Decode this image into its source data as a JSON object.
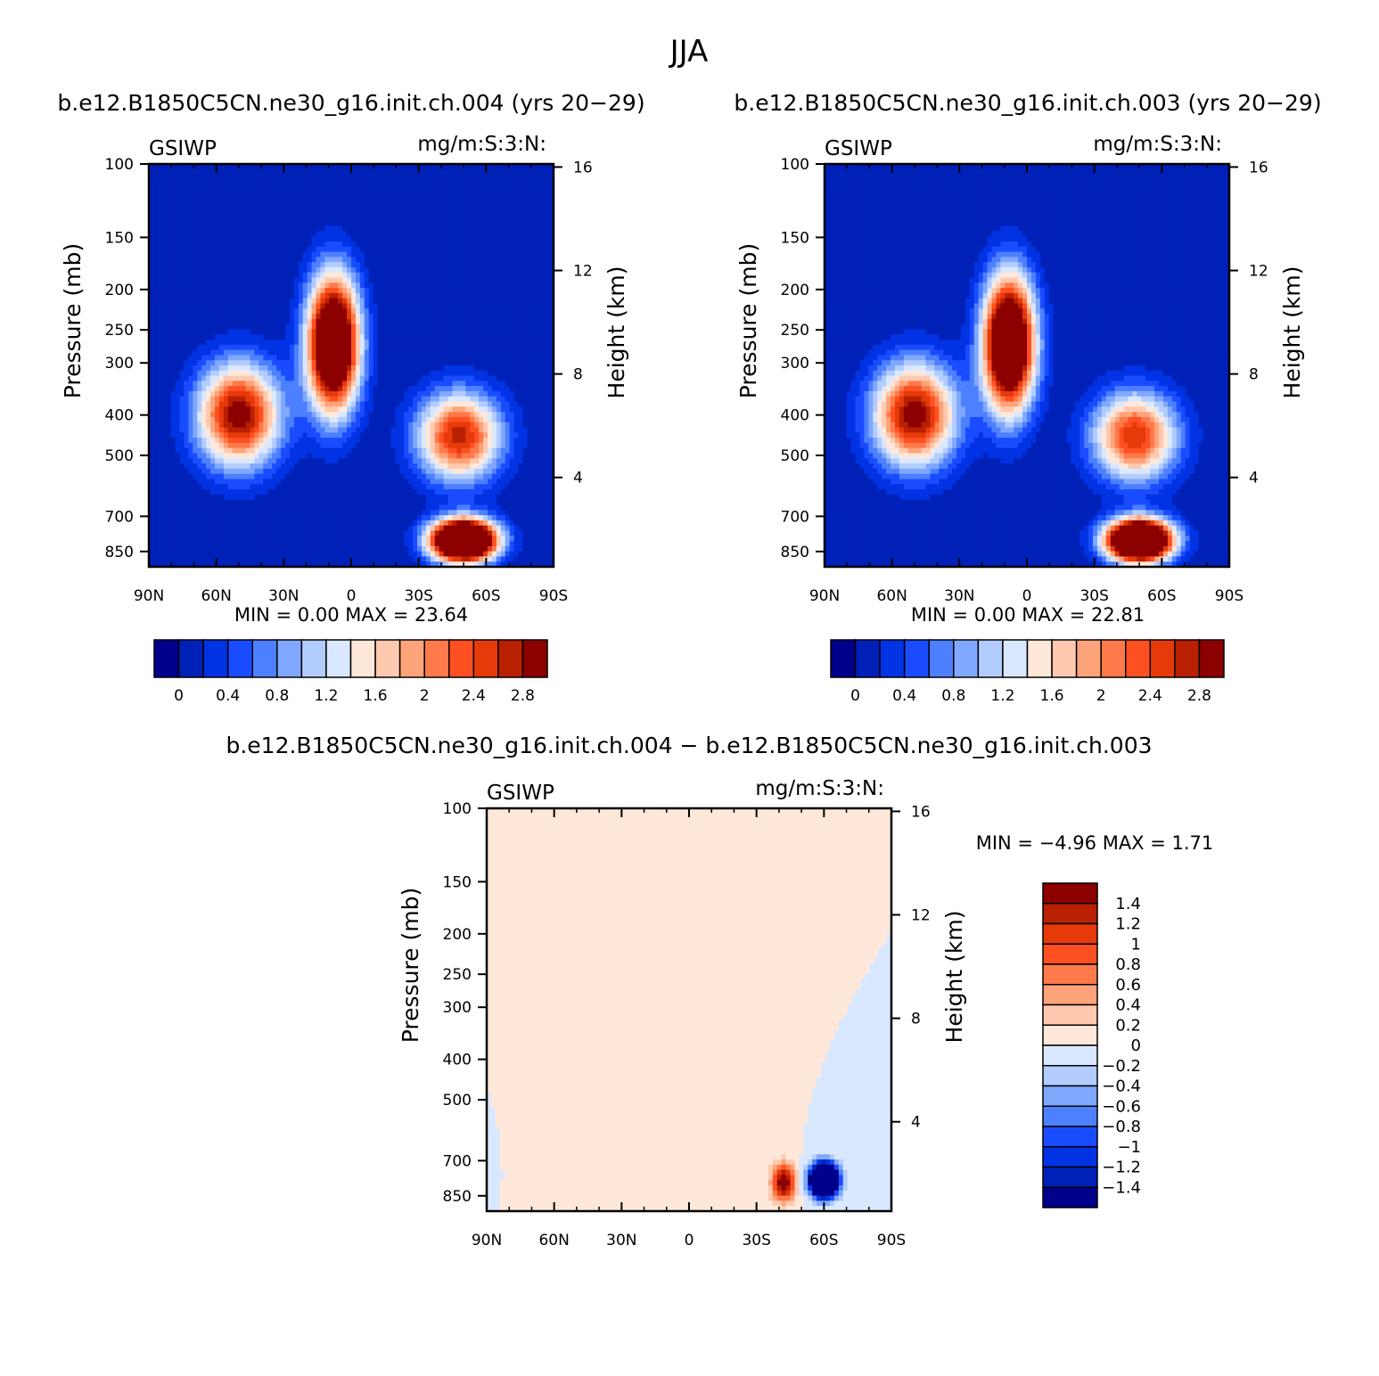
{
  "figure": {
    "title": "JJA",
    "diff_title": "b.e12.B1850C5CN.ne30_g16.init.ch.004 − b.e12.B1850C5CN.ne30_g16.init.ch.003"
  },
  "chart_data": [
    {
      "type": "heatmap",
      "title": "b.e12.B1850C5CN.ne30_g16.init.ch.004 (yrs 20−29)",
      "left_label": "GSIWP",
      "right_label": "mg/m:S:3:N:",
      "ylabel": "Pressure (mb)",
      "ylabel2": "Height (km)",
      "xticks": [
        "90N",
        "60N",
        "30N",
        "0",
        "30S",
        "60S",
        "90S"
      ],
      "xlim": [
        90,
        -90
      ],
      "yticks": [
        "100",
        "150",
        "200",
        "250",
        "300",
        "400",
        "500",
        "700",
        "850"
      ],
      "ylim": [
        100,
        925
      ],
      "y_scale": "log",
      "y2ticks": [
        "4",
        "8",
        "12",
        "16"
      ],
      "min": "0.00",
      "max": "23.64",
      "stats_label": "MIN =     0.00   MAX =    23.64",
      "levels": [
        "0",
        "0.4",
        "0.8",
        "1.2",
        "1.6",
        "2",
        "2.4",
        "2.8"
      ],
      "level_values": [
        0,
        0.2,
        0.4,
        0.6,
        0.8,
        1.0,
        1.2,
        1.4,
        1.6,
        1.8,
        2.0,
        2.2,
        2.4,
        2.6,
        2.8
      ],
      "colors": [
        "#00008a",
        "#0021b8",
        "#0033e3",
        "#1a4cff",
        "#4d80ff",
        "#80a8ff",
        "#b3ccff",
        "#d9e8ff",
        "#ffe8d9",
        "#ffc9b0",
        "#ffa47a",
        "#ff7a4a",
        "#ff5022",
        "#e63a0a",
        "#b82000",
        "#8c0000"
      ],
      "features": [
        {
          "name": "nh-midlat-cloud",
          "lat": 50,
          "p": 400,
          "lat_width": 13,
          "log_p_width": 0.2,
          "peak": 3.0
        },
        {
          "name": "tropical-anvil",
          "lat": 8,
          "p": 270,
          "lat_width": 8,
          "log_p_width": 0.26,
          "peak": 4.5
        },
        {
          "name": "sh-midlat-upper",
          "lat": -48,
          "p": 450,
          "lat_width": 13,
          "log_p_width": 0.17,
          "peak": 2.7
        },
        {
          "name": "sh-lowlevel",
          "lat": -50,
          "p": 800,
          "lat_width": 10,
          "log_p_width": 0.08,
          "peak": 6.0
        }
      ]
    },
    {
      "type": "heatmap",
      "title": "b.e12.B1850C5CN.ne30_g16.init.ch.003 (yrs 20−29)",
      "left_label": "GSIWP",
      "right_label": "mg/m:S:3:N:",
      "ylabel": "Pressure (mb)",
      "ylabel2": "Height (km)",
      "xticks": [
        "90N",
        "60N",
        "30N",
        "0",
        "30S",
        "60S",
        "90S"
      ],
      "xlim": [
        90,
        -90
      ],
      "yticks": [
        "100",
        "150",
        "200",
        "250",
        "300",
        "400",
        "500",
        "700",
        "850"
      ],
      "ylim": [
        100,
        925
      ],
      "y_scale": "log",
      "y2ticks": [
        "4",
        "8",
        "12",
        "16"
      ],
      "min": "0.00",
      "max": "22.81",
      "stats_label": "MIN =     0.00   MAX =    22.81",
      "levels": [
        "0",
        "0.4",
        "0.8",
        "1.2",
        "1.6",
        "2",
        "2.4",
        "2.8"
      ],
      "level_values": [
        0,
        0.2,
        0.4,
        0.6,
        0.8,
        1.0,
        1.2,
        1.4,
        1.6,
        1.8,
        2.0,
        2.2,
        2.4,
        2.6,
        2.8
      ],
      "colors": [
        "#00008a",
        "#0021b8",
        "#0033e3",
        "#1a4cff",
        "#4d80ff",
        "#80a8ff",
        "#b3ccff",
        "#d9e8ff",
        "#ffe8d9",
        "#ffc9b0",
        "#ffa47a",
        "#ff7a4a",
        "#ff5022",
        "#e63a0a",
        "#b82000",
        "#8c0000"
      ],
      "features": [
        {
          "name": "nh-midlat-cloud",
          "lat": 50,
          "p": 400,
          "lat_width": 13,
          "log_p_width": 0.2,
          "peak": 3.0
        },
        {
          "name": "tropical-anvil",
          "lat": 8,
          "p": 270,
          "lat_width": 8,
          "log_p_width": 0.26,
          "peak": 4.5
        },
        {
          "name": "sh-midlat-upper",
          "lat": -48,
          "p": 450,
          "lat_width": 13,
          "log_p_width": 0.17,
          "peak": 2.6
        },
        {
          "name": "sh-lowlevel",
          "lat": -50,
          "p": 800,
          "lat_width": 10,
          "log_p_width": 0.08,
          "peak": 6.0
        }
      ]
    },
    {
      "type": "heatmap",
      "title": "b.e12.B1850C5CN.ne30_g16.init.ch.004 − b.e12.B1850C5CN.ne30_g16.init.ch.003",
      "left_label": "GSIWP",
      "right_label": "mg/m:S:3:N:",
      "ylabel": "Pressure (mb)",
      "ylabel2": "Height (km)",
      "xticks": [
        "90N",
        "60N",
        "30N",
        "0",
        "30S",
        "60S",
        "90S"
      ],
      "xlim": [
        90,
        -90
      ],
      "yticks": [
        "100",
        "150",
        "200",
        "250",
        "300",
        "400",
        "500",
        "700",
        "850"
      ],
      "ylim": [
        100,
        925
      ],
      "y_scale": "log",
      "y2ticks": [
        "4",
        "8",
        "12",
        "16"
      ],
      "min": "−4.96",
      "max": "1.71",
      "stats_label": "MIN =   −4.96   MAX =     1.71",
      "levels": [
        "1.4",
        "1.2",
        "1",
        "0.8",
        "0.6",
        "0.4",
        "0.2",
        "0",
        "−0.2",
        "−0.4",
        "−0.6",
        "−0.8",
        "−1",
        "−1.2",
        "−1.4"
      ],
      "level_values": [
        -1.4,
        -1.2,
        -1.0,
        -0.8,
        -0.6,
        -0.4,
        -0.2,
        0,
        0.2,
        0.4,
        0.6,
        0.8,
        1.0,
        1.2,
        1.4
      ],
      "colors": [
        "#00008a",
        "#0021b8",
        "#0033e3",
        "#1a4cff",
        "#4d80ff",
        "#80a8ff",
        "#b3ccff",
        "#d9e8ff",
        "#ffe8d9",
        "#ffc9b0",
        "#ffa47a",
        "#ff7a4a",
        "#ff5022",
        "#e63a0a",
        "#b82000",
        "#8c0000"
      ],
      "features": [
        {
          "name": "positive-dipole",
          "lat": -42,
          "p": 790,
          "lat_width": 3.5,
          "log_p_width": 0.07,
          "peak": 1.71
        },
        {
          "name": "negative-dipole",
          "lat": -60,
          "p": 780,
          "lat_width": 4,
          "log_p_width": 0.06,
          "peak": -4.96
        }
      ]
    }
  ]
}
